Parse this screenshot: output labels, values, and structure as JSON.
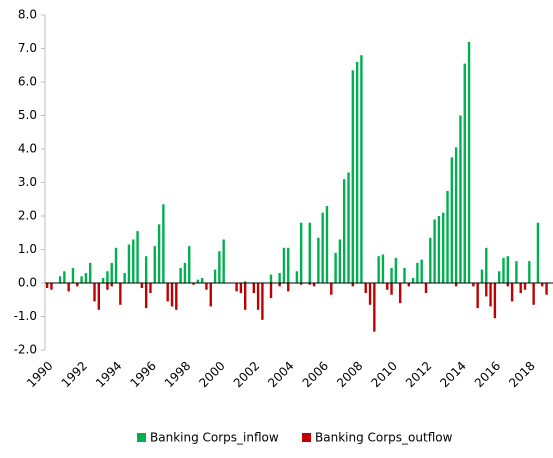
{
  "chart_data": {
    "type": "bar",
    "categories": [
      "1990",
      null,
      null,
      null,
      null,
      null,
      null,
      null,
      "1992",
      null,
      null,
      null,
      null,
      null,
      null,
      null,
      "1994",
      null,
      null,
      null,
      null,
      null,
      null,
      null,
      "1996",
      null,
      null,
      null,
      null,
      null,
      null,
      null,
      "1998",
      null,
      null,
      null,
      null,
      null,
      null,
      null,
      "2000",
      null,
      null,
      null,
      null,
      null,
      null,
      null,
      "2002",
      null,
      null,
      null,
      null,
      null,
      null,
      null,
      "2004",
      null,
      null,
      null,
      null,
      null,
      null,
      null,
      "2006",
      null,
      null,
      null,
      null,
      null,
      null,
      null,
      "2008",
      null,
      null,
      null,
      null,
      null,
      null,
      null,
      "2010",
      null,
      null,
      null,
      null,
      null,
      null,
      null,
      "2012",
      null,
      null,
      null,
      null,
      null,
      null,
      null,
      "2014",
      null,
      null,
      null,
      null,
      null,
      null,
      null,
      "2016",
      null,
      null,
      null,
      null,
      null,
      null,
      null,
      "2018",
      null,
      null,
      null,
      null,
      null
    ],
    "series": [
      {
        "name": "Banking Corps_inflow",
        "color": "#00b050",
        "values": [
          0,
          0,
          0,
          0.2,
          0.35,
          0,
          0.45,
          0,
          0.2,
          0.3,
          0.6,
          0,
          0,
          0.15,
          0.35,
          0.6,
          1.05,
          0,
          0.3,
          1.15,
          1.3,
          1.55,
          0,
          0.8,
          0,
          1.1,
          1.75,
          2.35,
          0,
          0,
          0,
          0.45,
          0.6,
          1.1,
          0,
          0.1,
          0.15,
          0,
          0,
          0.4,
          0.95,
          1.3,
          0,
          0,
          0,
          0,
          0.05,
          0,
          0,
          0,
          0,
          0,
          0.25,
          0,
          0.3,
          1.05,
          1.05,
          0,
          0.35,
          1.8,
          0,
          1.8,
          0,
          1.35,
          2.1,
          2.3,
          0,
          0.9,
          1.3,
          3.1,
          3.3,
          6.35,
          6.6,
          6.8,
          0,
          0,
          0,
          0.8,
          0.85,
          0,
          0.45,
          0.75,
          0,
          0.45,
          0,
          0.15,
          0.6,
          0.7,
          0,
          1.35,
          1.9,
          2.0,
          2.1,
          2.75,
          3.75,
          4.05,
          5.0,
          6.55,
          7.2,
          0,
          0,
          0.4,
          1.05,
          0,
          0,
          0.35,
          0.75,
          0.8,
          0,
          0.65,
          0,
          0,
          0.65,
          0,
          1.8,
          0,
          0,
          0
        ]
      },
      {
        "name": "Banking Corps_outflow",
        "color": "#c00000",
        "values": [
          -0.15,
          -0.2,
          0,
          0,
          0,
          -0.25,
          0,
          -0.1,
          0,
          0,
          0,
          -0.55,
          -0.8,
          0,
          -0.2,
          -0.1,
          0,
          -0.65,
          0,
          0,
          0,
          0,
          -0.15,
          -0.75,
          -0.3,
          0,
          0,
          0,
          -0.55,
          -0.7,
          -0.8,
          0,
          0,
          0,
          -0.05,
          0,
          0,
          -0.2,
          -0.7,
          0,
          0,
          0,
          0,
          0,
          -0.25,
          -0.3,
          -0.8,
          0,
          -0.3,
          -0.8,
          -1.1,
          0,
          -0.45,
          0,
          -0.1,
          0,
          -0.25,
          0,
          0,
          -0.05,
          0,
          -0.05,
          -0.1,
          0,
          0,
          0,
          -0.35,
          0,
          0,
          0,
          0,
          -0.1,
          0,
          0,
          -0.3,
          -0.65,
          -1.45,
          0,
          0,
          -0.2,
          -0.35,
          0,
          -0.6,
          0,
          -0.1,
          0,
          0,
          0,
          -0.3,
          0,
          0,
          0,
          0,
          0,
          0,
          -0.1,
          0,
          0,
          0,
          -0.1,
          -0.75,
          0,
          -0.4,
          -0.7,
          -1.05,
          0,
          0,
          -0.1,
          -0.55,
          0,
          -0.3,
          -0.2,
          0,
          -0.65,
          0,
          -0.1,
          -0.35,
          0
        ]
      }
    ],
    "ylim": [
      -2,
      8
    ],
    "yticks": [
      {
        "value": -2,
        "label": "-2.0"
      },
      {
        "value": -1,
        "label": "-1.0"
      },
      {
        "value": 0,
        "label": "0.0"
      },
      {
        "value": 1,
        "label": "1.0"
      },
      {
        "value": 2,
        "label": "2.0"
      },
      {
        "value": 3,
        "label": "3.0"
      },
      {
        "value": 4,
        "label": "4.0"
      },
      {
        "value": 5,
        "label": "5.0"
      },
      {
        "value": 6,
        "label": "6.0"
      },
      {
        "value": 7,
        "label": "7.0"
      },
      {
        "value": 8,
        "label": "8.0"
      }
    ],
    "legend": "bottom"
  }
}
